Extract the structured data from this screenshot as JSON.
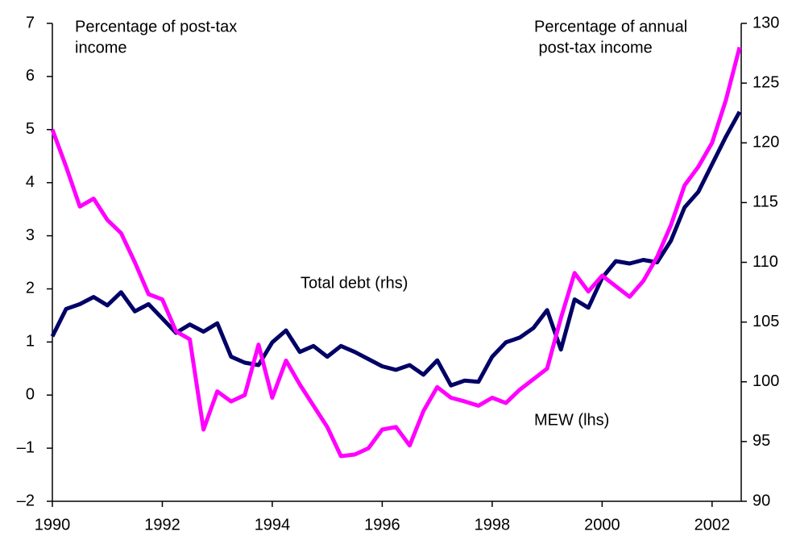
{
  "chart_data": {
    "type": "line",
    "left_axis_label": [
      "Percentage of post-tax",
      "income"
    ],
    "right_axis_label": [
      "Percentage of annual",
      " post-tax income"
    ],
    "x": [
      1990.0,
      1990.25,
      1990.5,
      1990.75,
      1991.0,
      1991.25,
      1991.5,
      1991.75,
      1992.0,
      1992.25,
      1992.5,
      1992.75,
      1993.0,
      1993.25,
      1993.5,
      1993.75,
      1994.0,
      1994.25,
      1994.5,
      1994.75,
      1995.0,
      1995.25,
      1995.5,
      1995.75,
      1996.0,
      1996.25,
      1996.5,
      1996.75,
      1997.0,
      1997.25,
      1997.5,
      1997.75,
      1998.0,
      1998.25,
      1998.5,
      1998.75,
      1999.0,
      1999.25,
      1999.5,
      1999.75,
      2000.0,
      2000.25,
      2000.5,
      2000.75,
      2001.0,
      2001.25,
      2001.5,
      2001.75,
      2002.0,
      2002.25,
      2002.5
    ],
    "series": [
      {
        "name": "Total debt (rhs)",
        "color": "#000066",
        "axis": "y2",
        "values": [
          103.8,
          106.1,
          106.5,
          107.1,
          106.4,
          107.5,
          105.9,
          106.5,
          105.3,
          104.1,
          104.8,
          104.2,
          104.9,
          102.1,
          101.6,
          101.4,
          103.3,
          104.3,
          102.5,
          103.0,
          102.1,
          103.0,
          102.5,
          101.9,
          101.3,
          101.0,
          101.4,
          100.6,
          101.8,
          99.7,
          100.1,
          100.0,
          102.1,
          103.3,
          103.7,
          104.5,
          106.0,
          102.7,
          106.9,
          106.2,
          108.7,
          110.1,
          109.9,
          110.2,
          110.0,
          111.8,
          114.6,
          115.9,
          118.2,
          120.5,
          122.6
        ]
      },
      {
        "name": "MEW (lhs)",
        "color": "#ff00ff",
        "values": [
          5.0,
          4.3,
          3.55,
          3.7,
          3.3,
          3.05,
          2.5,
          1.9,
          1.8,
          1.2,
          1.05,
          -0.65,
          0.07,
          -0.12,
          0.0,
          0.95,
          -0.05,
          0.65,
          0.2,
          -0.2,
          -0.6,
          -1.15,
          -1.12,
          -1.0,
          -0.65,
          -0.6,
          -0.95,
          -0.3,
          0.15,
          -0.05,
          -0.12,
          -0.2,
          -0.05,
          -0.15,
          0.1,
          0.3,
          0.5,
          1.45,
          2.3,
          1.95,
          2.25,
          2.05,
          1.85,
          2.15,
          2.6,
          3.2,
          3.95,
          4.3,
          4.75,
          5.55,
          6.55
        ]
      }
    ],
    "xlim": [
      1990,
      2002.53
    ],
    "xticks": [
      1990,
      1992,
      1994,
      1996,
      1998,
      2000,
      2002
    ],
    "ylim": [
      -2,
      7
    ],
    "yticks": [
      {
        "value": -2,
        "label": "–2"
      },
      {
        "value": -1,
        "label": "–1"
      },
      0,
      1,
      2,
      3,
      4,
      5,
      6,
      7
    ],
    "y2lim": [
      90,
      130
    ],
    "y2ticks": [
      90,
      95,
      100,
      105,
      110,
      115,
      120,
      125,
      130
    ]
  }
}
